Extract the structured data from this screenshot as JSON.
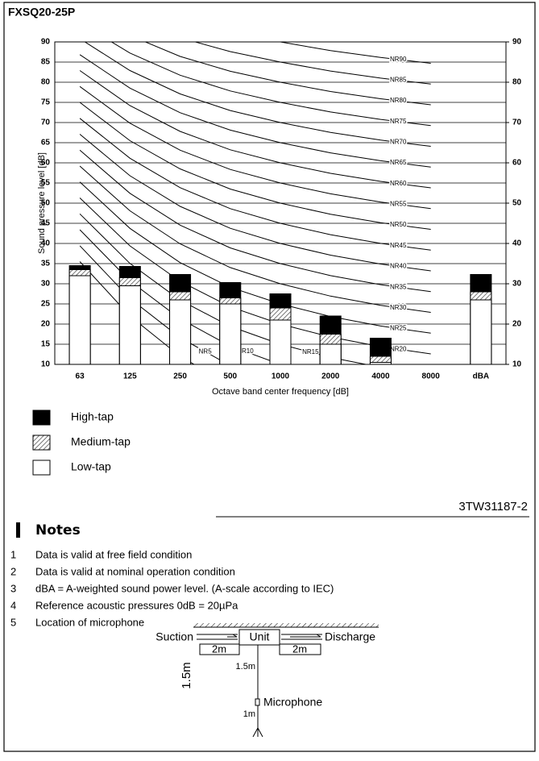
{
  "header": {
    "title": "FXSQ20-25P"
  },
  "chart_data": {
    "type": "bar",
    "x_label": "Octave band center frequency [dB]",
    "y_label": "Sound pressure level [dB]",
    "categories": [
      "63",
      "125",
      "250",
      "500",
      "1000",
      "2000",
      "4000",
      "8000",
      "dBA"
    ],
    "series": [
      {
        "name": "High-tap",
        "color": "#000000",
        "fill": "solid",
        "values": [
          34.5,
          34.3,
          32.3,
          30.3,
          27.5,
          22,
          16.5,
          null,
          32.3
        ]
      },
      {
        "name": "Medium-tap",
        "color": "#555555",
        "fill": "hatch",
        "values": [
          33.5,
          31.5,
          28,
          26.5,
          24,
          17.5,
          12,
          null,
          28
        ]
      },
      {
        "name": "Low-tap",
        "color": "#ffffff",
        "fill": "solid",
        "values": [
          32,
          29.5,
          26,
          25,
          21,
          15,
          10.5,
          null,
          26
        ]
      }
    ],
    "ylim": [
      10,
      90
    ],
    "yticks": [
      10,
      15,
      20,
      25,
      30,
      35,
      40,
      45,
      50,
      55,
      60,
      65,
      70,
      75,
      80,
      85,
      90
    ],
    "y2lim": [
      10,
      90
    ],
    "y2ticks": [
      10,
      20,
      30,
      40,
      50,
      60,
      70,
      80,
      90
    ],
    "grid": true,
    "nr_curves": [
      {
        "name": "NR0",
        "values": [
          35.5,
          22,
          12,
          4.8,
          0,
          -3.5,
          -6.1,
          -8
        ]
      },
      {
        "name": "NR5",
        "values": [
          39.45,
          26.35,
          16.65,
          9.67,
          5,
          1.575,
          -0.975,
          -2.85
        ]
      },
      {
        "name": "NR10",
        "values": [
          43.4,
          30.7,
          21.3,
          14.54,
          10,
          6.65,
          4.15,
          2.3
        ]
      },
      {
        "name": "NR15",
        "values": [
          47.35,
          35.05,
          25.95,
          19.41,
          15,
          11.725,
          9.275,
          7.45
        ]
      },
      {
        "name": "NR20",
        "values": [
          51.3,
          39.4,
          30.6,
          24.28,
          20,
          16.8,
          14.4,
          12.6
        ]
      },
      {
        "name": "NR25",
        "values": [
          55.25,
          43.75,
          35.25,
          29.15,
          25,
          21.875,
          19.525,
          17.75
        ]
      },
      {
        "name": "NR30",
        "values": [
          59.2,
          48.1,
          39.9,
          34.02,
          30,
          26.95,
          24.65,
          22.9
        ]
      },
      {
        "name": "NR35",
        "values": [
          63.15,
          52.45,
          44.55,
          38.89,
          35,
          32.025,
          29.775,
          28.05
        ]
      },
      {
        "name": "NR40",
        "values": [
          67.1,
          56.8,
          49.2,
          43.76,
          40,
          37.1,
          34.9,
          33.2
        ]
      },
      {
        "name": "NR45",
        "values": [
          71.05,
          61.15,
          53.85,
          48.63,
          45,
          42.175,
          40.025,
          38.35
        ]
      },
      {
        "name": "NR50",
        "values": [
          75,
          65.5,
          58.5,
          53.5,
          50,
          47.25,
          45.15,
          43.5
        ]
      },
      {
        "name": "NR55",
        "values": [
          78.95,
          69.85,
          63.15,
          58.37,
          55,
          52.325,
          50.275,
          48.65
        ]
      },
      {
        "name": "NR60",
        "values": [
          82.9,
          74.2,
          67.8,
          63.24,
          60,
          57.4,
          55.4,
          53.8
        ]
      },
      {
        "name": "NR65",
        "values": [
          86.85,
          78.55,
          72.45,
          68.11,
          65,
          62.475,
          60.525,
          58.95
        ]
      },
      {
        "name": "NR70",
        "values": [
          90.8,
          82.9,
          77.1,
          72.98,
          70,
          67.55,
          65.65,
          64.1
        ]
      },
      {
        "name": "NR75",
        "values": [
          94.75,
          87.25,
          81.75,
          77.85,
          75,
          72.625,
          70.775,
          69.25
        ]
      },
      {
        "name": "NR80",
        "values": [
          98.7,
          91.6,
          86.4,
          82.72,
          80,
          77.7,
          75.9,
          74.4
        ]
      },
      {
        "name": "NR85",
        "values": [
          102.65,
          95.95,
          91.05,
          87.59,
          85,
          82.775,
          81.025,
          79.55
        ]
      },
      {
        "name": "NR90",
        "values": [
          106.6,
          100.3,
          95.7,
          92.46,
          90,
          87.85,
          86.15,
          84.7
        ]
      }
    ]
  },
  "document_id": "3TW31187-2",
  "notes": {
    "title": "Notes",
    "items": [
      {
        "number": "1",
        "text": "Data is valid at free field condition"
      },
      {
        "number": "2",
        "text": "Data is valid at nominal operation condition"
      },
      {
        "number": "3",
        "text": "dBA = A-weighted sound power level. (A-scale according to IEC)"
      },
      {
        "number": "4",
        "text": "Reference acoustic pressures 0dB = 20µPa"
      },
      {
        "number": "5",
        "text": "Location of microphone"
      }
    ],
    "diagram": {
      "suction": "Suction",
      "unit": "Unit",
      "discharge": "Discharge",
      "left_distance": "2m",
      "right_distance": "2m",
      "height": "1.5m",
      "unit_to_mic": "1.5m",
      "mic_to_floor": "1m",
      "microphone": "Microphone"
    }
  }
}
